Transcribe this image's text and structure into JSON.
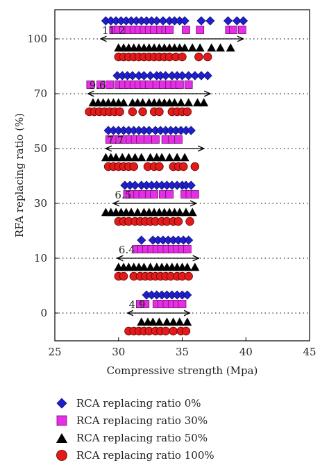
{
  "chart_data": {
    "type": "scatter",
    "xlabel": "Compressive strength (Mpa)",
    "ylabel": "RFA replacing ratio (%)",
    "xlim": [
      25,
      45
    ],
    "x_ticks": [
      "25",
      "30",
      "35",
      "40",
      "45"
    ],
    "y_categories": [
      "0",
      "10",
      "30",
      "50",
      "70",
      "100"
    ],
    "colors": {
      "rca0": "#1f1fd0",
      "rca30": "#e62ee6",
      "rca50": "#000000",
      "rca100": "#e21a1a"
    },
    "series": [
      {
        "name": "RCA replacing ratio 0%",
        "marker": "diamond",
        "color": "#1f1fd0",
        "points": {
          "100": [
            29.0,
            29.4,
            29.8,
            30.2,
            30.6,
            31.0,
            31.4,
            31.8,
            32.2,
            32.6,
            33.0,
            33.5,
            34.0,
            34.4,
            34.8,
            35.2,
            36.5,
            37.2,
            38.6,
            39.3,
            39.8
          ],
          "70": [
            29.9,
            30.3,
            30.7,
            31.1,
            31.6,
            32.0,
            32.5,
            33.0,
            33.3,
            33.7,
            34.2,
            34.6,
            35.0,
            35.5,
            36.0,
            36.5,
            37.0
          ],
          "50": [
            29.2,
            29.6,
            30.0,
            30.4,
            30.8,
            31.2,
            31.6,
            32.0,
            32.4,
            32.9,
            33.3,
            33.7,
            34.1,
            34.5,
            34.9,
            35.3,
            35.7
          ],
          "30": [
            30.5,
            30.9,
            31.3,
            31.8,
            32.2,
            32.6,
            33.0,
            33.4,
            33.8,
            34.2,
            34.6,
            35.0,
            35.3,
            35.7
          ],
          "10": [
            31.8,
            32.7,
            33.1,
            33.5,
            33.9,
            34.3,
            34.7,
            35.1,
            35.5
          ],
          "0": [
            32.2,
            32.6,
            33.0,
            33.4,
            33.8,
            34.2,
            34.6,
            35.0,
            35.4
          ]
        }
      },
      {
        "name": "RCA replacing ratio 30%",
        "marker": "square",
        "color": "#e62ee6",
        "points": {
          "100": [
            29.6,
            30.0,
            30.4,
            30.8,
            31.2,
            31.6,
            32.0,
            32.4,
            32.8,
            33.3,
            33.7,
            34.0,
            35.3,
            36.4,
            38.7,
            39.0,
            39.7
          ],
          "70": [
            27.8,
            28.6,
            29.3,
            30.0,
            30.4,
            30.8,
            31.2,
            31.6,
            32.0,
            32.4,
            33.0,
            33.5,
            34.0,
            34.4,
            34.8,
            35.5
          ],
          "50": [
            29.3,
            29.7,
            30.1,
            30.5,
            30.9,
            31.3,
            31.7,
            32.3,
            32.9,
            33.7,
            34.2,
            34.7
          ],
          "30": [
            30.7,
            31.1,
            31.5,
            31.9,
            32.4,
            32.8,
            33.5,
            34.0,
            35.2,
            35.6,
            36.0
          ],
          "10": [
            31.4,
            31.8,
            32.2,
            32.6,
            33.0,
            33.4,
            33.8,
            34.2,
            34.6,
            35.0,
            35.4
          ],
          "0": [
            31.7,
            32.1,
            33.0,
            33.4,
            33.8,
            34.2,
            34.6,
            35.0
          ]
        }
      },
      {
        "name": "RCA replacing ratio 50%",
        "marker": "triangle",
        "color": "#000000",
        "points": {
          "100": [
            30.0,
            30.4,
            30.8,
            31.2,
            31.6,
            32.0,
            32.4,
            32.8,
            33.2,
            33.6,
            34.0,
            34.4,
            34.8,
            35.2,
            35.8,
            36.4,
            37.3,
            38.0,
            38.8
          ],
          "70": [
            28.0,
            28.4,
            28.8,
            29.2,
            29.6,
            30.0,
            30.4,
            31.1,
            31.5,
            31.9,
            32.4,
            32.8,
            33.2,
            33.6,
            34.0,
            34.4,
            34.9,
            35.5,
            36.2,
            36.7
          ],
          "50": [
            29.0,
            29.4,
            29.8,
            30.3,
            30.8,
            31.3,
            31.8,
            32.5,
            33.0,
            33.4,
            34.0,
            34.6,
            35.2
          ],
          "30": [
            29.0,
            29.4,
            29.8,
            30.2,
            30.6,
            31.0,
            31.5,
            32.0,
            32.4,
            32.8,
            33.2,
            33.6,
            34.0,
            34.4,
            34.8,
            35.3,
            35.8
          ],
          "10": [
            30.0,
            30.4,
            30.8,
            31.2,
            31.6,
            32.0,
            32.5,
            33.0,
            33.4,
            33.8,
            34.2,
            34.6,
            35.0,
            35.4,
            36.0
          ],
          "0": [
            31.8,
            32.3,
            32.7,
            33.2,
            33.8,
            34.3,
            34.8,
            35.4
          ]
        }
      },
      {
        "name": "RCA replacing ratio 100%",
        "marker": "circle",
        "color": "#e21a1a",
        "points": {
          "100": [
            30.0,
            30.4,
            30.8,
            31.2,
            31.6,
            32.0,
            32.4,
            32.8,
            33.2,
            33.6,
            34.0,
            34.5,
            35.0,
            36.3,
            37.0
          ],
          "70": [
            27.7,
            28.1,
            28.5,
            28.9,
            29.3,
            29.7,
            30.1,
            31.1,
            31.9,
            32.8,
            33.2,
            34.2,
            34.6,
            35.0,
            35.4
          ],
          "50": [
            29.2,
            29.6,
            30.0,
            30.4,
            30.8,
            31.2,
            32.3,
            32.8,
            33.2,
            34.3,
            34.7,
            35.1,
            36.0
          ],
          "30": [
            30.0,
            30.4,
            30.8,
            31.3,
            31.7,
            32.1,
            32.5,
            32.9,
            33.4,
            33.8,
            34.3,
            34.7,
            35.6
          ],
          "10": [
            30.0,
            30.4,
            31.2,
            31.7,
            32.1,
            32.5,
            32.9,
            33.3,
            33.7,
            34.1,
            34.6,
            35.0,
            35.5
          ],
          "0": [
            30.8,
            31.2,
            31.6,
            32.0,
            32.4,
            32.9,
            33.3,
            33.7,
            34.3,
            34.9,
            35.3
          ]
        }
      }
    ],
    "range_arrows": [
      {
        "category": "100",
        "label": "11.2",
        "from": 28.6,
        "to": 39.8
      },
      {
        "category": "70",
        "label": "9.6",
        "from": 27.6,
        "to": 37.2
      },
      {
        "category": "50",
        "label": "7.7",
        "from": 29.0,
        "to": 36.7
      },
      {
        "category": "30",
        "label": "6.5",
        "from": 29.6,
        "to": 36.1
      },
      {
        "category": "10",
        "label": "6.4",
        "from": 29.9,
        "to": 36.3
      },
      {
        "category": "0",
        "label": "4.9",
        "from": 30.7,
        "to": 35.6
      }
    ]
  }
}
